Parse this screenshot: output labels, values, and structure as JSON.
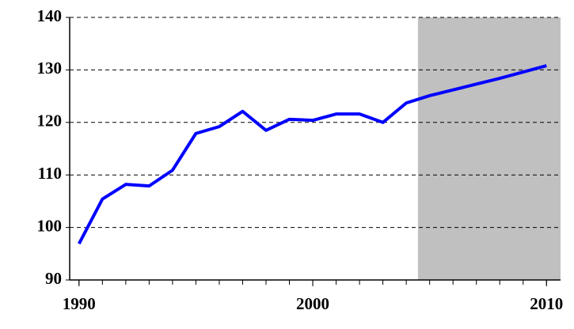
{
  "chart_data": {
    "type": "line",
    "x": [
      1990,
      1991,
      1992,
      1993,
      1994,
      1995,
      1996,
      1997,
      1998,
      1999,
      2000,
      2001,
      2002,
      2003,
      2004,
      2005,
      2006,
      2007,
      2008,
      2009,
      2010
    ],
    "series": [
      {
        "color": "#0000ff",
        "values": [
          96.9,
          105.4,
          108.2,
          107.9,
          110.9,
          117.9,
          119.2,
          122.1,
          118.5,
          120.6,
          120.4,
          121.6,
          121.6,
          120.0,
          123.7,
          125.1,
          126.2,
          127.3,
          128.4,
          129.6,
          130.8
        ]
      }
    ],
    "xlim": [
      1989.6,
      2010.6
    ],
    "xticks": [
      1990,
      2000,
      2010
    ],
    "ylim": [
      90,
      140
    ],
    "yticks": [
      90,
      100,
      110,
      120,
      130,
      140
    ],
    "grid": true,
    "shade_from": 2004.5,
    "shade_color": "#c0c0c0"
  }
}
